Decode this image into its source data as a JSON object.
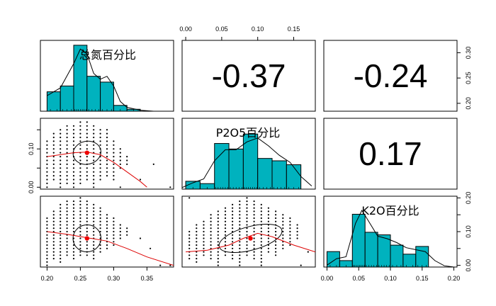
{
  "chart_data": {
    "type": "scatter-matrix",
    "variables": [
      {
        "key": "N",
        "name": "总氮百分比",
        "lim": [
          0.19,
          0.39
        ],
        "ticks": [
          0.2,
          0.25,
          0.3,
          0.35
        ],
        "tick_labels": [
          "0.20",
          "0.25",
          "0.30",
          "0.35"
        ],
        "hist": {
          "breaks": [
            0.2,
            0.22,
            0.24,
            0.26,
            0.28,
            0.3,
            0.32,
            0.34
          ],
          "density": [
            2.0,
            2.6,
            6.8,
            3.6,
            3.0,
            0.6,
            0.2
          ]
        },
        "density_curve": [
          [
            0.2,
            1.6
          ],
          [
            0.22,
            2.4
          ],
          [
            0.24,
            4.9
          ],
          [
            0.25,
            6.4
          ],
          [
            0.26,
            5.9
          ],
          [
            0.27,
            3.9
          ],
          [
            0.28,
            3.3
          ],
          [
            0.29,
            3.6
          ],
          [
            0.3,
            2.6
          ],
          [
            0.31,
            1.0
          ],
          [
            0.32,
            0.4
          ],
          [
            0.34,
            0.1
          ],
          [
            0.36,
            0.0
          ]
        ],
        "hist_top": 7.3
      },
      {
        "key": "P",
        "name": "P2O5百分比",
        "lim": [
          -0.005,
          0.18
        ],
        "ticks": [
          0.0,
          0.05,
          0.1,
          0.15
        ],
        "tick_labels": [
          "0.00",
          "0.05",
          "0.10",
          "0.15"
        ],
        "hist": {
          "breaks": [
            0.0,
            0.02,
            0.04,
            0.06,
            0.08,
            0.1,
            0.12,
            0.14,
            0.16
          ],
          "density": [
            1.0,
            0.7,
            5.8,
            5.1,
            7.0,
            3.9,
            3.6,
            3.1
          ]
        },
        "density_curve": [
          [
            -0.005,
            0.2
          ],
          [
            0.01,
            0.8
          ],
          [
            0.025,
            1.3
          ],
          [
            0.04,
            3.6
          ],
          [
            0.055,
            5.0
          ],
          [
            0.07,
            5.0
          ],
          [
            0.085,
            6.0
          ],
          [
            0.1,
            6.5
          ],
          [
            0.115,
            5.5
          ],
          [
            0.13,
            4.3
          ],
          [
            0.145,
            3.4
          ],
          [
            0.16,
            1.6
          ],
          [
            0.175,
            0.4
          ]
        ],
        "hist_top": 9.0
      },
      {
        "key": "K",
        "name": "K2O百分比",
        "lim": [
          -0.005,
          0.205
        ],
        "ticks": [
          0.0,
          0.05,
          0.1,
          0.15,
          0.2
        ],
        "tick_labels": [
          "0.00",
          "0.05",
          "0.10",
          "0.15",
          "0.20"
        ],
        "hist": {
          "breaks": [
            0.0,
            0.02,
            0.04,
            0.06,
            0.08,
            0.1,
            0.12,
            0.14,
            0.16
          ],
          "density": [
            2.4,
            1.0,
            8.2,
            5.4,
            5.0,
            3.4,
            2.0,
            3.2
          ]
        },
        "density_curve": [
          [
            0.0,
            0.3
          ],
          [
            0.015,
            1.3
          ],
          [
            0.03,
            1.6
          ],
          [
            0.045,
            6.8
          ],
          [
            0.055,
            8.8
          ],
          [
            0.065,
            7.2
          ],
          [
            0.08,
            4.8
          ],
          [
            0.095,
            4.4
          ],
          [
            0.11,
            3.8
          ],
          [
            0.125,
            3.0
          ],
          [
            0.14,
            2.7
          ],
          [
            0.155,
            2.4
          ],
          [
            0.17,
            1.0
          ],
          [
            0.185,
            0.2
          ],
          [
            0.2,
            0.0
          ]
        ],
        "hist_top": 11.0
      }
    ],
    "correlations": [
      {
        "row": 0,
        "col": 1,
        "label": "-0.37",
        "value": -0.37
      },
      {
        "row": 0,
        "col": 2,
        "label": "-0.24",
        "value": -0.24
      },
      {
        "row": 1,
        "col": 2,
        "label": "0.17",
        "value": 0.17
      }
    ],
    "scatter": {
      "N_grid": [
        0.2,
        0.21,
        0.22,
        0.23,
        0.24,
        0.25,
        0.26,
        0.27,
        0.28,
        0.29,
        0.3,
        0.31,
        0.32
      ],
      "P_grid_step": 0.01,
      "K_grid_step": 0.01,
      "P_ranges_by_N": [
        [
          0.0,
          0.12
        ],
        [
          0.02,
          0.14
        ],
        [
          0.0,
          0.15
        ],
        [
          0.01,
          0.16
        ],
        [
          0.0,
          0.16
        ],
        [
          0.01,
          0.17
        ],
        [
          0.02,
          0.17
        ],
        [
          0.0,
          0.16
        ],
        [
          0.02,
          0.15
        ],
        [
          0.03,
          0.15
        ],
        [
          0.02,
          0.12
        ],
        [
          0.05,
          0.1
        ],
        [
          0.06,
          0.08
        ]
      ],
      "K_ranges_by_N": [
        [
          0.0,
          0.14
        ],
        [
          0.02,
          0.16
        ],
        [
          0.01,
          0.18
        ],
        [
          0.03,
          0.19
        ],
        [
          0.02,
          0.19
        ],
        [
          0.03,
          0.2
        ],
        [
          0.03,
          0.19
        ],
        [
          0.02,
          0.18
        ],
        [
          0.04,
          0.17
        ],
        [
          0.05,
          0.15
        ],
        [
          0.06,
          0.14
        ],
        [
          0.08,
          0.12
        ],
        [
          0.09,
          0.11
        ]
      ],
      "K_ranges_by_P": [
        [
          0.02,
          0.1
        ],
        [
          0.01,
          0.12
        ],
        [
          0.03,
          0.13
        ],
        [
          0.02,
          0.15
        ],
        [
          0.0,
          0.16
        ],
        [
          0.03,
          0.17
        ],
        [
          0.02,
          0.18
        ],
        [
          0.0,
          0.19
        ],
        [
          0.03,
          0.2
        ],
        [
          0.02,
          0.19
        ],
        [
          0.0,
          0.18
        ],
        [
          0.04,
          0.17
        ],
        [
          0.03,
          0.16
        ],
        [
          0.05,
          0.15
        ],
        [
          0.06,
          0.14
        ],
        [
          0.08,
          0.12
        ]
      ],
      "outliers_NP": [
        [
          0.34,
          0.02
        ],
        [
          0.36,
          0.06
        ],
        [
          0.385,
          0.0
        ],
        [
          0.31,
          0.0
        ]
      ],
      "outliers_NK": [
        [
          0.34,
          0.08
        ],
        [
          0.37,
          0.0
        ],
        [
          0.385,
          0.0
        ],
        [
          0.355,
          0.05
        ]
      ],
      "outliers_PK": [
        [
          0.005,
          0.2
        ],
        [
          0.16,
          0.0
        ],
        [
          0.17,
          0.04
        ]
      ]
    },
    "means": {
      "N": 0.26,
      "P": 0.09,
      "K": 0.08
    },
    "smoothers": {
      "NP": [
        [
          0.2,
          0.08
        ],
        [
          0.22,
          0.085
        ],
        [
          0.24,
          0.09
        ],
        [
          0.26,
          0.092
        ],
        [
          0.28,
          0.085
        ],
        [
          0.3,
          0.065
        ],
        [
          0.32,
          0.04
        ],
        [
          0.34,
          0.015
        ],
        [
          0.35,
          0.0
        ]
      ],
      "NK": [
        [
          0.2,
          0.1
        ],
        [
          0.23,
          0.092
        ],
        [
          0.26,
          0.082
        ],
        [
          0.29,
          0.072
        ],
        [
          0.32,
          0.05
        ],
        [
          0.35,
          0.025
        ],
        [
          0.39,
          0.0
        ]
      ],
      "PK": [
        [
          0.0,
          0.04
        ],
        [
          0.03,
          0.045
        ],
        [
          0.06,
          0.06
        ],
        [
          0.08,
          0.08
        ],
        [
          0.1,
          0.095
        ],
        [
          0.12,
          0.085
        ],
        [
          0.15,
          0.06
        ],
        [
          0.18,
          0.04
        ]
      ]
    },
    "ellipses": {
      "NP": {
        "cx": 0.26,
        "cy": 0.09,
        "rx": 0.021,
        "ry": 0.03,
        "rot": -12
      },
      "NK": {
        "cx": 0.26,
        "cy": 0.08,
        "rx": 0.021,
        "ry": 0.04,
        "rot": -8
      },
      "PK": {
        "cx": 0.09,
        "cy": 0.08,
        "rx": 0.045,
        "ry": 0.035,
        "rot": -15
      }
    },
    "colors": {
      "bar_fill": "#00B2BE",
      "bar_stroke": "#000000",
      "smoother": "#DD0000",
      "mean_point": "#EE0000",
      "points": "#000000"
    }
  }
}
